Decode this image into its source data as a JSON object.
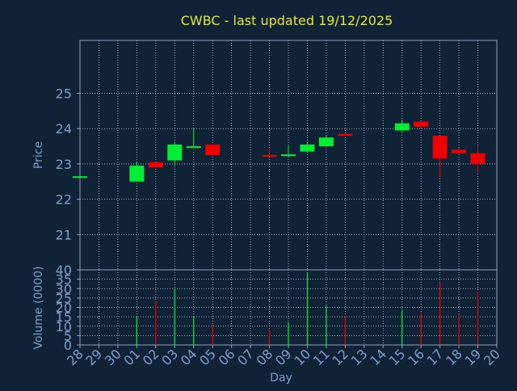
{
  "chart_data": {
    "type": "candlestick",
    "title": "CWBC - last updated 19/12/2025",
    "xlabel": "Day",
    "price_panel": {
      "ylabel": "Price",
      "ylim": [
        20,
        26.5
      ],
      "yticks": [
        21,
        22,
        23,
        24,
        25
      ],
      "grid": true
    },
    "volume_panel": {
      "ylabel": "Volume (0000)",
      "ylim": [
        0,
        40
      ],
      "yticks": [
        0,
        5,
        10,
        15,
        20,
        25,
        30,
        35,
        40
      ],
      "grid": true
    },
    "colors": {
      "background": "#0f2236",
      "axis": "#8fa3c0",
      "tick_text": "#7f9fc9",
      "title": "#e8e833",
      "up": "#00ee33",
      "down": "#ee0000",
      "grid": "#c0c8d8"
    },
    "categories": [
      "28",
      "29",
      "30",
      "01",
      "02",
      "03",
      "04",
      "05",
      "06",
      "07",
      "08",
      "09",
      "10",
      "11",
      "12",
      "13",
      "14",
      "15",
      "16",
      "17",
      "18",
      "19",
      "20"
    ],
    "candles": [
      {
        "day": "28",
        "open": 22.65,
        "high": 22.65,
        "low": 22.65,
        "close": 22.65,
        "volume": 0
      },
      {
        "day": "01",
        "open": 22.5,
        "high": 23.05,
        "low": 22.5,
        "close": 22.95,
        "volume": 15
      },
      {
        "day": "02",
        "open": 23.05,
        "high": 23.05,
        "low": 22.9,
        "close": 22.9,
        "volume": 23.5
      },
      {
        "day": "03",
        "open": 23.1,
        "high": 23.6,
        "low": 22.95,
        "close": 23.55,
        "volume": 30
      },
      {
        "day": "04",
        "open": 23.5,
        "high": 24.0,
        "low": 23.45,
        "close": 23.5,
        "volume": 15
      },
      {
        "day": "05",
        "open": 23.55,
        "high": 23.55,
        "low": 23.25,
        "close": 23.25,
        "volume": 11
      },
      {
        "day": "08",
        "open": 23.25,
        "high": 23.45,
        "low": 23.2,
        "close": 23.22,
        "volume": 8.5
      },
      {
        "day": "09",
        "open": 23.25,
        "high": 23.55,
        "low": 23.2,
        "close": 23.27,
        "volume": 12
      },
      {
        "day": "10",
        "open": 23.35,
        "high": 23.6,
        "low": 23.35,
        "close": 23.55,
        "volume": 38.5
      },
      {
        "day": "11",
        "open": 23.5,
        "high": 23.8,
        "low": 23.5,
        "close": 23.75,
        "volume": 21
      },
      {
        "day": "12",
        "open": 23.85,
        "high": 23.85,
        "low": 23.78,
        "close": 23.8,
        "volume": 15.5
      },
      {
        "day": "15",
        "open": 23.95,
        "high": 24.25,
        "low": 23.9,
        "close": 24.15,
        "volume": 18.5
      },
      {
        "day": "16",
        "open": 24.2,
        "high": 24.2,
        "low": 24.05,
        "close": 24.05,
        "volume": 17
      },
      {
        "day": "17",
        "open": 23.8,
        "high": 23.8,
        "low": 22.6,
        "close": 23.15,
        "volume": 33
      },
      {
        "day": "18",
        "open": 23.4,
        "high": 23.45,
        "low": 23.3,
        "close": 23.3,
        "volume": 16
      },
      {
        "day": "19",
        "open": 23.3,
        "high": 23.5,
        "low": 22.75,
        "close": 23.0,
        "volume": 28.5
      }
    ]
  }
}
